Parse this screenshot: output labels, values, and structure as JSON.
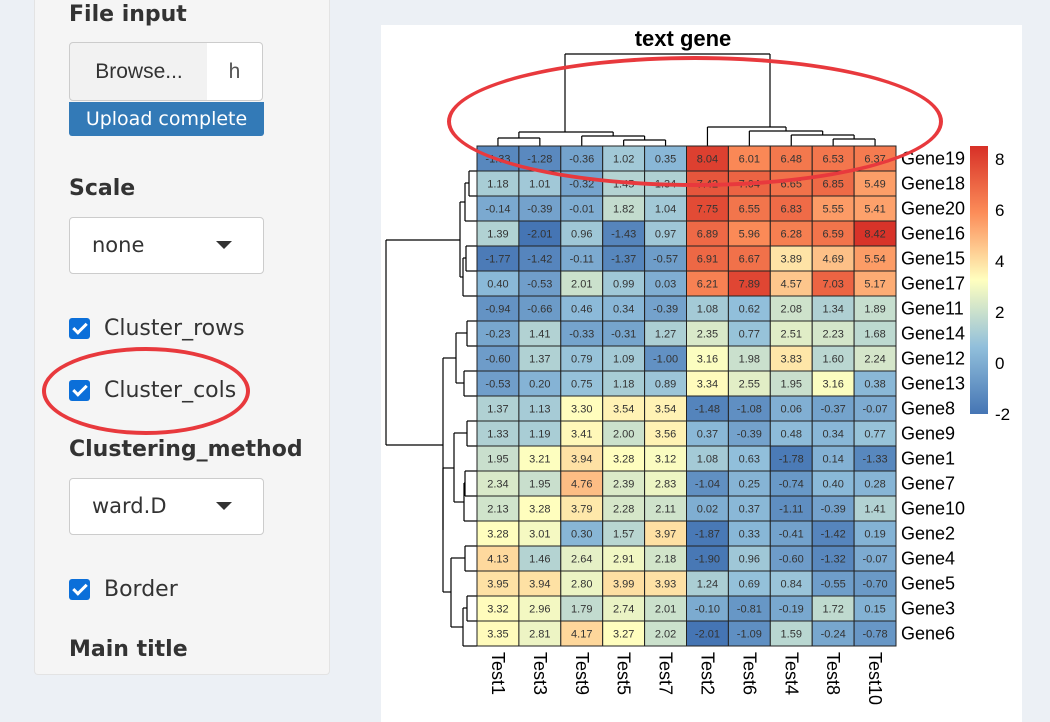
{
  "sidebar": {
    "file_input_label": "File input",
    "browse_label": "Browse...",
    "file_name": "h",
    "upload_status": "Upload complete",
    "scale_label": "Scale",
    "scale_value": "none",
    "cluster_rows_label": "Cluster_rows",
    "cluster_cols_label": "Cluster_cols",
    "clustering_method_label": "Clustering_method",
    "clustering_method_value": "ward.D",
    "border_label": "Border",
    "main_title_label": "Main title"
  },
  "colors": {
    "accent": "#337ab7",
    "checkbox": "#0b6fd9",
    "annotation": "#e8393d",
    "scale_low": "#4575b4",
    "scale_mid": "#ffffbf",
    "scale_high": "#d73027"
  },
  "chart_data": {
    "type": "heatmap",
    "title": "text gene",
    "columns": [
      "Test1",
      "Test3",
      "Test9",
      "Test5",
      "Test7",
      "Test2",
      "Test6",
      "Test4",
      "Test8",
      "Test10"
    ],
    "rows": [
      "Gene19",
      "Gene18",
      "Gene20",
      "Gene16",
      "Gene15",
      "Gene17",
      "Gene11",
      "Gene14",
      "Gene12",
      "Gene13",
      "Gene8",
      "Gene9",
      "Gene1",
      "Gene7",
      "Gene10",
      "Gene2",
      "Gene4",
      "Gene5",
      "Gene3",
      "Gene6"
    ],
    "values": [
      [
        -1.33,
        -1.28,
        -0.36,
        1.02,
        0.35,
        8.04,
        6.01,
        6.48,
        6.53,
        6.37
      ],
      [
        1.18,
        1.01,
        -0.32,
        1.45,
        1.34,
        7.42,
        7.04,
        6.65,
        6.85,
        5.49
      ],
      [
        -0.14,
        -0.39,
        -0.01,
        1.82,
        1.04,
        7.75,
        6.55,
        6.83,
        5.55,
        5.41
      ],
      [
        1.39,
        -2.01,
        0.96,
        -1.43,
        0.97,
        6.89,
        5.96,
        6.28,
        6.59,
        8.42
      ],
      [
        -1.77,
        -1.42,
        -0.11,
        -1.37,
        -0.57,
        6.91,
        6.67,
        3.89,
        4.69,
        5.54
      ],
      [
        0.4,
        -0.53,
        2.01,
        0.99,
        0.03,
        6.21,
        7.89,
        4.57,
        7.03,
        5.17
      ],
      [
        -0.94,
        -0.66,
        0.46,
        0.34,
        -0.39,
        1.08,
        0.62,
        2.08,
        1.34,
        1.89
      ],
      [
        -0.23,
        1.41,
        -0.33,
        -0.31,
        1.27,
        2.35,
        0.77,
        2.51,
        2.23,
        1.68
      ],
      [
        -0.6,
        1.37,
        0.79,
        1.09,
        -1.0,
        3.16,
        1.98,
        3.83,
        1.6,
        2.24
      ],
      [
        -0.53,
        0.2,
        0.75,
        1.18,
        0.89,
        3.34,
        2.55,
        1.95,
        3.16,
        0.38
      ],
      [
        1.37,
        1.13,
        3.3,
        3.54,
        3.54,
        -1.48,
        -1.08,
        0.06,
        -0.37,
        -0.07
      ],
      [
        1.33,
        1.19,
        3.41,
        2.0,
        3.56,
        0.37,
        -0.39,
        0.48,
        0.34,
        0.77
      ],
      [
        1.95,
        3.21,
        3.94,
        3.28,
        3.12,
        1.08,
        0.63,
        -1.78,
        0.14,
        -1.33
      ],
      [
        2.34,
        1.95,
        4.76,
        2.39,
        2.83,
        -1.04,
        0.25,
        -0.74,
        0.4,
        0.28
      ],
      [
        2.13,
        3.28,
        3.79,
        2.28,
        2.11,
        0.02,
        0.37,
        -1.11,
        -0.39,
        1.41
      ],
      [
        3.28,
        3.01,
        0.3,
        1.57,
        3.97,
        -1.87,
        0.33,
        -0.41,
        -1.42,
        0.19
      ],
      [
        4.13,
        1.46,
        2.64,
        2.91,
        2.18,
        -1.9,
        0.96,
        -0.6,
        -1.32,
        -0.07
      ],
      [
        3.95,
        3.94,
        2.8,
        3.99,
        3.93,
        1.24,
        0.69,
        0.84,
        -0.55,
        -0.7
      ],
      [
        3.32,
        2.96,
        1.79,
        2.74,
        2.01,
        -0.1,
        -0.81,
        -0.19,
        1.72,
        0.15
      ],
      [
        3.35,
        2.81,
        4.17,
        3.27,
        2.02,
        -2.01,
        -1.09,
        1.59,
        -0.24,
        -0.78
      ]
    ],
    "legend_ticks": [
      8,
      6,
      4,
      2,
      0,
      -2
    ],
    "scale_range": [
      -2,
      8.5
    ],
    "legend_placement": "right"
  }
}
